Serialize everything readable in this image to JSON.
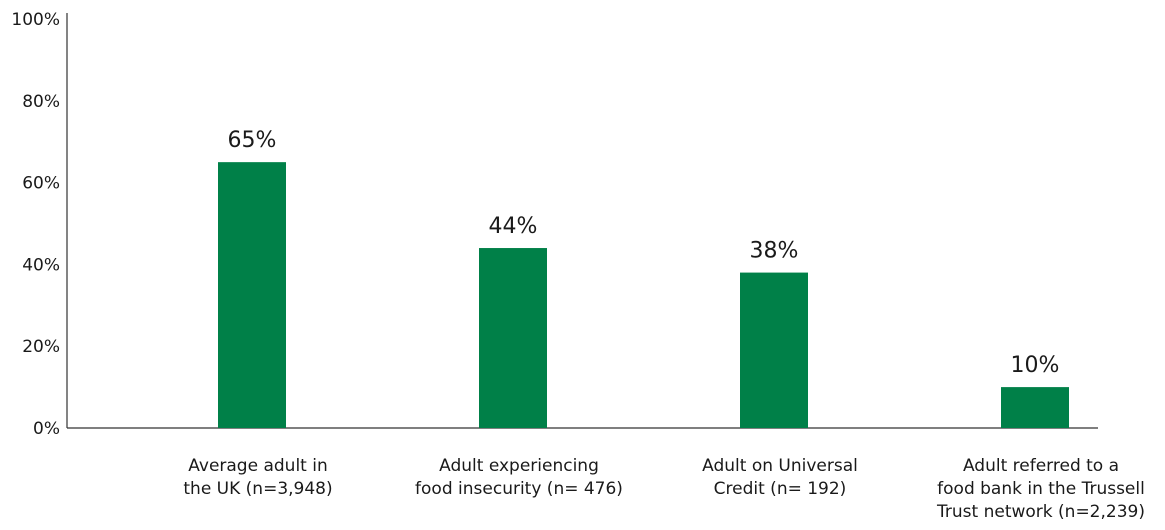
{
  "chart_data": {
    "type": "bar",
    "title": "",
    "xlabel": "",
    "ylabel": "",
    "ylim": [
      0,
      100
    ],
    "yticks": [
      0,
      20,
      40,
      60,
      80,
      100
    ],
    "ytick_labels": [
      "0%",
      "20%",
      "40%",
      "60%",
      "80%",
      "100%"
    ],
    "grid": false,
    "legend": "none",
    "bar_color": "#008048",
    "categories": [
      [
        "Average adult in",
        "the UK (n=3,948)"
      ],
      [
        "Adult experiencing",
        "food insecurity (n= 476)"
      ],
      [
        "Adult on Universal",
        "Credit (n= 192)"
      ],
      [
        "Adult referred to a",
        "food bank in the Trussell",
        "Trust network (n=2,239)"
      ]
    ],
    "values": [
      65,
      44,
      38,
      10
    ],
    "value_labels": [
      "65%",
      "44%",
      "38%",
      "10%"
    ]
  }
}
